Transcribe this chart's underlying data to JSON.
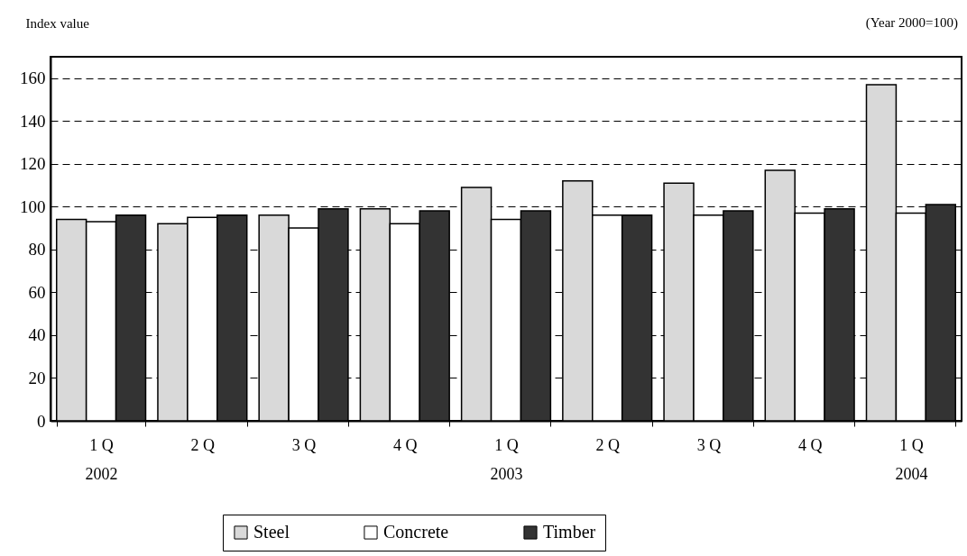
{
  "chart_data": {
    "type": "bar",
    "ylabel": "Index value",
    "annotations": [
      "(Year 2000=100)"
    ],
    "categories": [
      "1 Q\n2002",
      "2 Q",
      "3 Q",
      "4 Q",
      "1 Q\n2003",
      "2 Q",
      "3 Q",
      "4 Q",
      "1 Q\n2004"
    ],
    "series": [
      {
        "name": "Steel",
        "color": "#d9d9d9",
        "values": [
          94,
          92,
          96,
          99,
          109,
          112,
          111,
          117,
          157
        ]
      },
      {
        "name": "Concrete",
        "color": "#ffffff",
        "values": [
          93,
          95,
          90,
          92,
          94,
          96,
          96,
          97,
          97
        ]
      },
      {
        "name": "Timber",
        "color": "#333333",
        "values": [
          96,
          96,
          99,
          98,
          98,
          96,
          98,
          99,
          101
        ]
      }
    ],
    "ylim": [
      0,
      170
    ],
    "yticks": [
      0,
      20,
      40,
      60,
      80,
      100,
      120,
      140,
      160
    ],
    "grid": "y",
    "legend": "bottom"
  }
}
